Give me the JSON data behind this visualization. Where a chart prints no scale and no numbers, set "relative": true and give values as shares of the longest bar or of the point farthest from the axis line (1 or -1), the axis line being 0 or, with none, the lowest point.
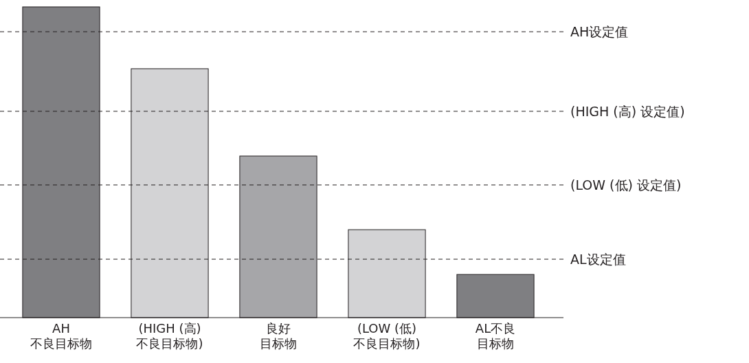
{
  "chart_data": {
    "type": "bar",
    "relative": true,
    "categories": [
      "AH\n不良目标物",
      "(HIGH (高)\n不良目标物)",
      "良好目标物",
      "(LOW (低)\n不良目标物)",
      "AL不良目标物"
    ],
    "values": [
      1,
      0.801,
      0.52,
      0.283,
      0.139
    ],
    "colors": [
      "#7f7f82",
      "#d3d3d5",
      "#a6a6a9",
      "#d3d3d5",
      "#7f7f82"
    ],
    "ref_lines": [
      {
        "axis": "y",
        "value": 0.92,
        "label": "AH设定值",
        "line_style": "dashed",
        "color": "#231f20"
      },
      {
        "axis": "y",
        "value": 0.664,
        "label": "(HIGH (高) 设定值)",
        "line_style": "dashed",
        "color": "#231f20"
      },
      {
        "axis": "y",
        "value": 0.427,
        "label": "(LOW (低) 设定值)",
        "line_style": "dashed",
        "color": "#231f20"
      },
      {
        "axis": "y",
        "value": 0.188,
        "label": "AL设定值",
        "line_style": "dashed",
        "color": "#231f20"
      }
    ]
  }
}
